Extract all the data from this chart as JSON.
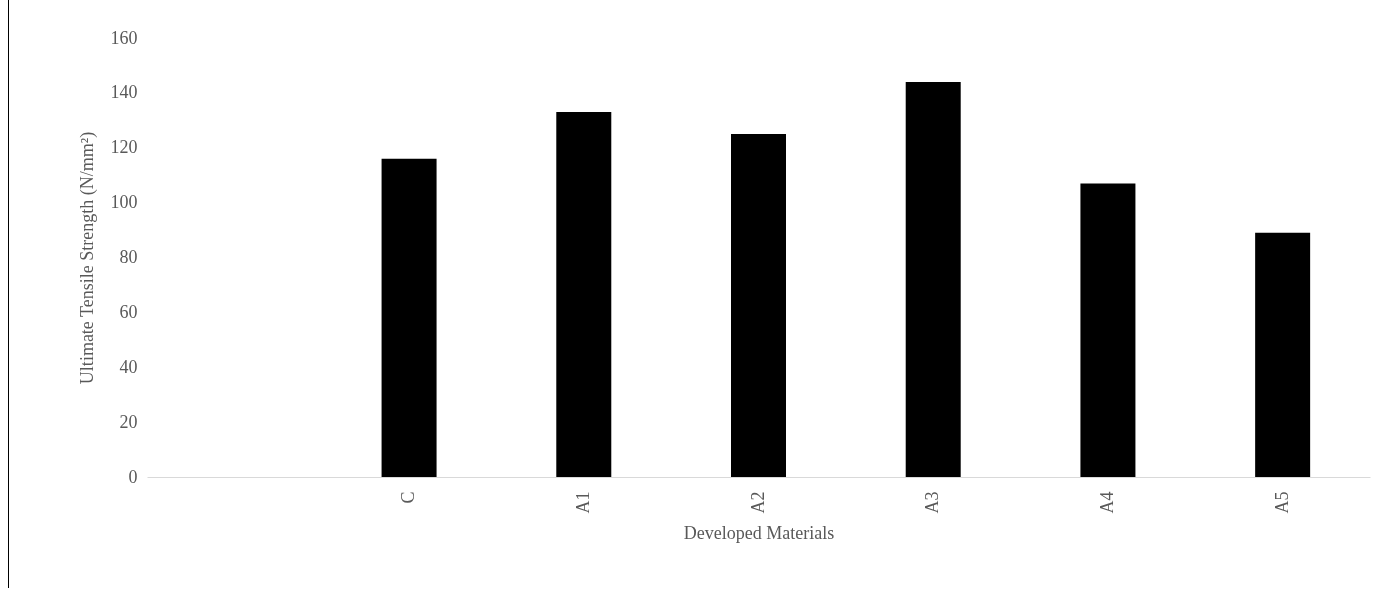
{
  "chart_data": {
    "type": "bar",
    "xlabel": "Developed Materials",
    "ylabel": "Ultimate Tensile Strength (N/mm²)",
    "categories": [
      null,
      "C",
      "A1",
      "A2",
      "A3",
      "A4",
      "A5"
    ],
    "values": [
      null,
      116,
      133,
      125,
      144,
      107,
      89
    ],
    "color": "#000000",
    "ylim": [
      0,
      160
    ],
    "yticks": [
      0,
      20,
      40,
      60,
      80,
      100,
      120,
      140,
      160
    ],
    "grid": false
  }
}
